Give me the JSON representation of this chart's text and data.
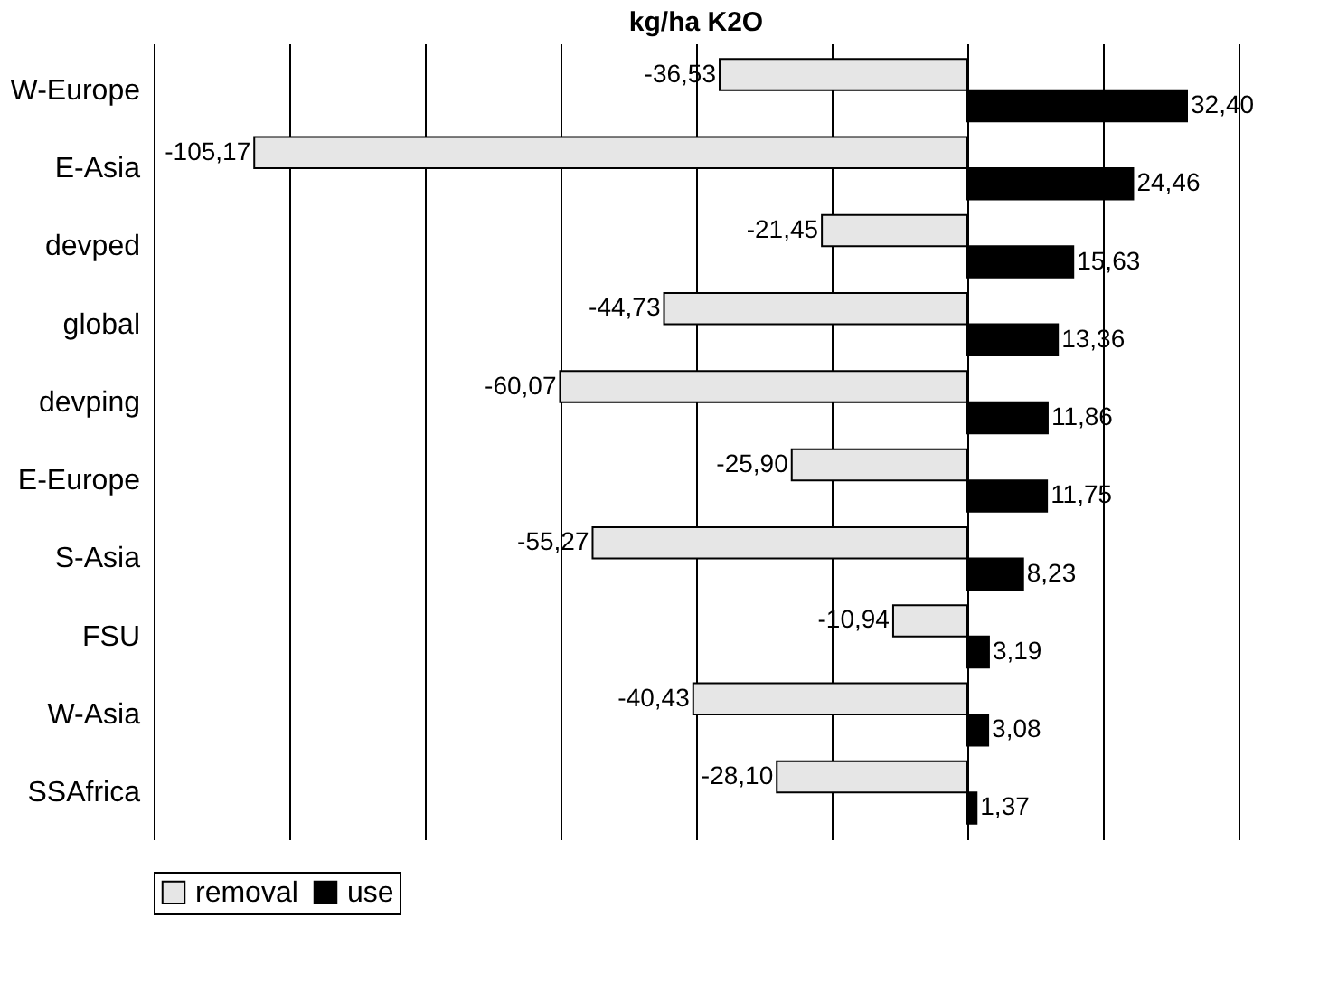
{
  "chart_data": {
    "type": "bar",
    "orientation": "horizontal",
    "title": "kg/ha K2O",
    "categories": [
      "W-Europe",
      "E-Asia",
      "devped",
      "global",
      "devping",
      "E-Europe",
      "S-Asia",
      "FSU",
      "W-Asia",
      "SSAfrica"
    ],
    "series": [
      {
        "name": "removal",
        "color": "#e6e6e6",
        "values": [
          -36.53,
          -105.17,
          -21.45,
          -44.73,
          -60.07,
          -25.9,
          -55.27,
          -10.94,
          -40.43,
          -28.1
        ],
        "value_labels": [
          "-36,53",
          "-105,17",
          "-21,45",
          "-44,73",
          "-60,07",
          "-25,90",
          "-55,27",
          "-10,94",
          "-40,43",
          "-28,10"
        ]
      },
      {
        "name": "use",
        "color": "#000000",
        "values": [
          32.4,
          24.46,
          15.63,
          13.36,
          11.86,
          11.75,
          8.23,
          3.19,
          3.08,
          1.37
        ],
        "value_labels": [
          "32,40",
          "24,46",
          "15,63",
          "13,36",
          "11,86",
          "11,75",
          "8,23",
          "3,19",
          "3,08",
          "1,37"
        ]
      }
    ],
    "xlim": [
      -120,
      40
    ],
    "xticks": [
      {
        "value": -120,
        "label": null
      },
      {
        "value": -100,
        "label": null
      },
      {
        "value": -80,
        "label": null
      },
      {
        "value": -60,
        "label": null
      },
      {
        "value": -40,
        "label": null
      },
      {
        "value": -20,
        "label": null
      },
      {
        "value": 0,
        "label": null
      },
      {
        "value": 20,
        "label": null
      },
      {
        "value": 40,
        "label": null
      }
    ],
    "tick_labels": "y",
    "grid": "x",
    "legend": "bottom"
  }
}
